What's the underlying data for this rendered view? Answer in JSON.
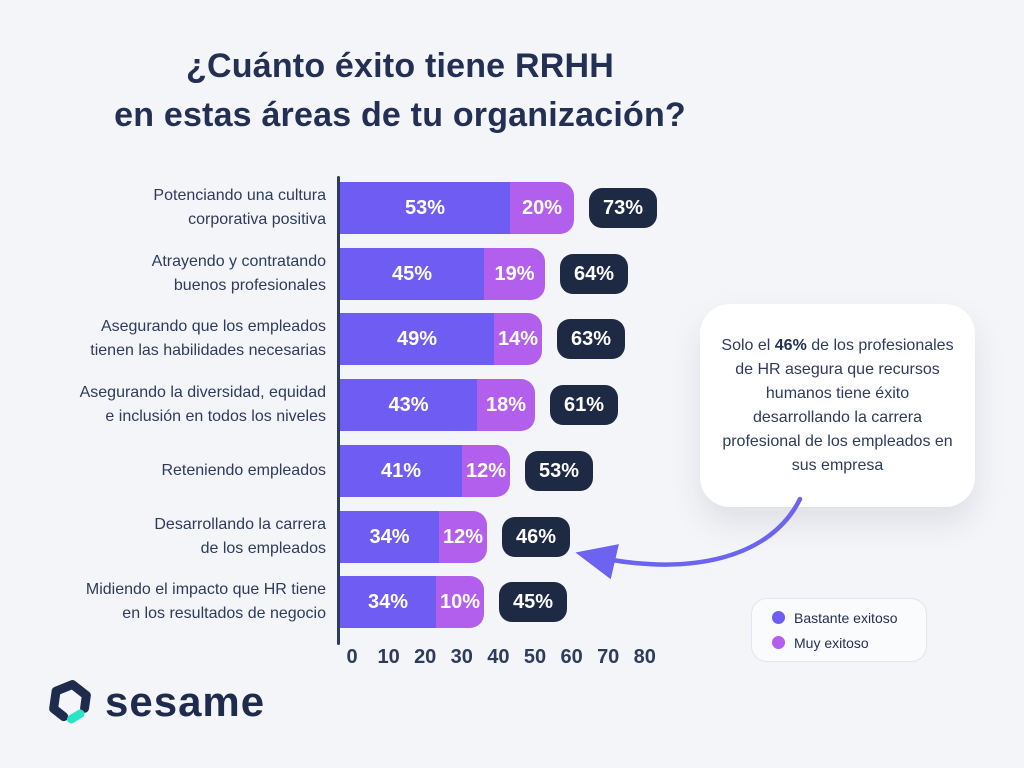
{
  "title": {
    "line1": "¿Cuánto éxito tiene RRHH",
    "line2": "en estas áreas de tu organización?"
  },
  "chart_data": {
    "type": "bar",
    "orientation": "horizontal",
    "unit": "%",
    "categories": [
      [
        "Potenciando una cultura",
        "corporativa positiva"
      ],
      [
        "Atrayendo y contratando",
        "buenos profesionales"
      ],
      [
        "Asegurando que los empleados",
        "tienen las habilidades necesarias"
      ],
      [
        "Asegurando la diversidad, equidad",
        "e inclusión en todos los niveles"
      ],
      [
        "Reteniendo empleados"
      ],
      [
        "Desarrollando la carrera",
        "de los empleados"
      ],
      [
        "Midiendo el impacto que HR tiene",
        "en los resultados de negocio"
      ]
    ],
    "series": [
      {
        "name": "Bastante exitoso",
        "color": "#6E5CF3",
        "values": [
          53,
          45,
          49,
          43,
          41,
          34,
          34
        ]
      },
      {
        "name": "Muy exitoso",
        "color": "#B15FEC",
        "values": [
          20,
          19,
          14,
          18,
          12,
          12,
          10
        ]
      }
    ],
    "totals": [
      73,
      64,
      63,
      61,
      53,
      46,
      45
    ],
    "x_ticks": [
      0,
      10,
      20,
      30,
      40,
      50,
      60,
      70,
      80
    ],
    "xlim": [
      0,
      80
    ],
    "grid": false,
    "legend_position": "bottom-right"
  },
  "callout": {
    "prefix": "Solo el ",
    "highlight": "46%",
    "suffix": " de los profesionales de HR asegura que recursos humanos tiene éxito desarrollando la carrera profesional de los empleados en sus empresa"
  },
  "legend": {
    "items": [
      {
        "label": "Bastante exitoso",
        "color": "#6E5CF3"
      },
      {
        "label": "Muy exitoso",
        "color": "#B15FEC"
      }
    ]
  },
  "logo": {
    "text": "sesame",
    "icon": "sesame-hexagon-icon"
  },
  "colors": {
    "background": "#F4F5F8",
    "title": "#233053",
    "label": "#2E3B5C",
    "badge_bg": "#1E2A44",
    "badge_text": "#FFFFFF",
    "bar_text": "#FFFFFF",
    "axis": "#2E3B5C",
    "arrow": "#6C63F0",
    "callout_bg": "#FFFFFF",
    "legend_border": "#E2E5EE",
    "logo_navy": "#1F2B4C",
    "logo_accent": "#2BE4C6"
  }
}
